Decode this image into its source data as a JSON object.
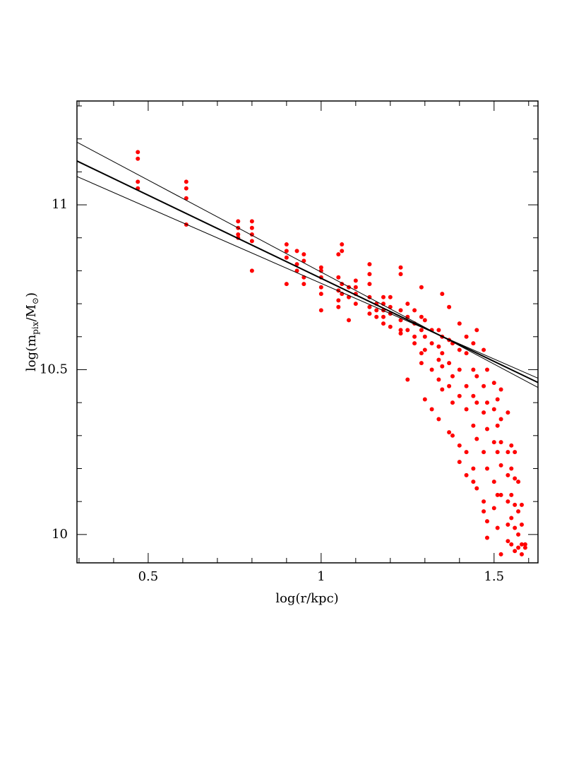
{
  "chart_data": {
    "type": "scatter",
    "x_label": "log(r/kpc)",
    "y_label_parts": [
      "log(m",
      "pix",
      "/M",
      "⊙",
      ")"
    ],
    "xlim": [
      0.294,
      1.627
    ],
    "ylim": [
      9.914,
      11.315
    ],
    "xticks": [
      0.5,
      1,
      1.5
    ],
    "xminor": [
      0.3,
      0.4,
      0.6,
      0.7,
      0.8,
      0.9,
      1.1,
      1.2,
      1.3,
      1.4,
      1.6
    ],
    "yticks": [
      10,
      10.5,
      11
    ],
    "yminor": [
      10.1,
      10.2,
      10.3,
      10.4,
      10.6,
      10.7,
      10.8,
      10.9,
      11.1,
      11.2,
      11.3
    ],
    "series": [
      {
        "color": "#ff0000",
        "x": [
          0.47,
          0.47,
          0.47,
          0.47,
          0.61,
          0.61,
          0.61,
          0.61,
          0.76,
          0.76,
          0.76,
          0.76,
          0.8,
          0.8,
          0.8,
          0.8,
          0.8,
          0.9,
          0.9,
          0.9,
          0.9,
          0.93,
          0.93,
          0.93,
          0.95,
          0.95,
          0.95,
          0.95,
          1.0,
          1.0,
          1.0,
          1.0,
          1.0,
          1.0,
          1.05,
          1.05,
          1.05,
          1.05,
          1.05,
          1.06,
          1.06,
          1.06,
          1.06,
          1.08,
          1.08,
          1.08,
          1.1,
          1.1,
          1.1,
          1.1,
          1.14,
          1.14,
          1.14,
          1.14,
          1.14,
          1.14,
          1.16,
          1.16,
          1.16,
          1.18,
          1.18,
          1.18,
          1.18,
          1.18,
          1.2,
          1.2,
          1.2,
          1.2,
          1.23,
          1.23,
          1.23,
          1.23,
          1.23,
          1.23,
          1.25,
          1.25,
          1.25,
          1.25,
          1.27,
          1.27,
          1.27,
          1.27,
          1.29,
          1.29,
          1.29,
          1.29,
          1.29,
          1.3,
          1.3,
          1.3,
          1.3,
          1.32,
          1.32,
          1.32,
          1.32,
          1.34,
          1.34,
          1.34,
          1.34,
          1.34,
          1.35,
          1.35,
          1.35,
          1.35,
          1.35,
          1.37,
          1.37,
          1.37,
          1.37,
          1.37,
          1.38,
          1.38,
          1.38,
          1.38,
          1.4,
          1.4,
          1.4,
          1.4,
          1.4,
          1.4,
          1.42,
          1.42,
          1.42,
          1.42,
          1.42,
          1.42,
          1.44,
          1.44,
          1.44,
          1.44,
          1.44,
          1.44,
          1.45,
          1.45,
          1.45,
          1.45,
          1.45,
          1.47,
          1.47,
          1.47,
          1.47,
          1.47,
          1.47,
          1.48,
          1.48,
          1.48,
          1.48,
          1.48,
          1.48,
          1.5,
          1.5,
          1.5,
          1.5,
          1.5,
          1.51,
          1.51,
          1.51,
          1.51,
          1.51,
          1.52,
          1.52,
          1.52,
          1.52,
          1.52,
          1.52,
          1.54,
          1.54,
          1.54,
          1.54,
          1.54,
          1.54,
          1.55,
          1.55,
          1.55,
          1.55,
          1.55,
          1.56,
          1.56,
          1.56,
          1.56,
          1.56,
          1.57,
          1.57,
          1.57,
          1.57,
          1.58,
          1.58,
          1.58,
          1.58,
          1.59,
          1.59
        ],
        "values": [
          11.16,
          11.14,
          11.07,
          11.05,
          11.07,
          11.05,
          11.02,
          10.94,
          10.95,
          10.93,
          10.91,
          10.9,
          10.95,
          10.93,
          10.91,
          10.89,
          10.8,
          10.88,
          10.86,
          10.84,
          10.76,
          10.86,
          10.82,
          10.8,
          10.85,
          10.83,
          10.78,
          10.76,
          10.81,
          10.8,
          10.78,
          10.75,
          10.73,
          10.68,
          10.85,
          10.78,
          10.74,
          10.71,
          10.69,
          10.88,
          10.86,
          10.76,
          10.73,
          10.75,
          10.72,
          10.65,
          10.77,
          10.75,
          10.73,
          10.7,
          10.82,
          10.79,
          10.76,
          10.72,
          10.69,
          10.67,
          10.7,
          10.68,
          10.66,
          10.72,
          10.7,
          10.68,
          10.66,
          10.64,
          10.72,
          10.69,
          10.67,
          10.63,
          10.81,
          10.79,
          10.68,
          10.65,
          10.62,
          10.61,
          10.7,
          10.66,
          10.62,
          10.47,
          10.68,
          10.64,
          10.6,
          10.58,
          10.75,
          10.66,
          10.62,
          10.55,
          10.52,
          10.65,
          10.6,
          10.56,
          10.41,
          10.62,
          10.58,
          10.5,
          10.38,
          10.62,
          10.57,
          10.53,
          10.47,
          10.35,
          10.73,
          10.6,
          10.55,
          10.51,
          10.44,
          10.69,
          10.59,
          10.52,
          10.45,
          10.31,
          10.58,
          10.48,
          10.4,
          10.3,
          10.64,
          10.56,
          10.5,
          10.42,
          10.27,
          10.22,
          10.6,
          10.55,
          10.45,
          10.38,
          10.25,
          10.18,
          10.58,
          10.5,
          10.42,
          10.33,
          10.2,
          10.16,
          10.62,
          10.48,
          10.4,
          10.29,
          10.14,
          10.56,
          10.45,
          10.37,
          10.25,
          10.1,
          10.07,
          10.5,
          10.4,
          10.32,
          10.2,
          10.04,
          9.99,
          10.46,
          10.38,
          10.28,
          10.16,
          10.08,
          10.41,
          10.33,
          10.25,
          10.12,
          10.02,
          10.44,
          10.35,
          10.28,
          10.21,
          10.12,
          9.94,
          10.37,
          10.25,
          10.18,
          10.1,
          10.03,
          9.98,
          10.27,
          10.2,
          10.12,
          10.05,
          9.97,
          10.25,
          10.17,
          10.09,
          10.02,
          9.95,
          10.16,
          10.07,
          10.0,
          9.96,
          10.09,
          10.03,
          9.97,
          9.94,
          9.97,
          9.96
        ]
      }
    ],
    "lines": [
      {
        "color": "#000000",
        "width": 2,
        "x": [
          0.294,
          1.627
        ],
        "values": [
          11.133,
          10.461
        ]
      },
      {
        "color": "#000000",
        "width": 1,
        "x": [
          0.294,
          1.627
        ],
        "values": [
          11.19,
          10.446
        ]
      },
      {
        "color": "#000000",
        "width": 1,
        "x": [
          0.294,
          1.627
        ],
        "values": [
          11.086,
          10.474
        ]
      }
    ]
  }
}
